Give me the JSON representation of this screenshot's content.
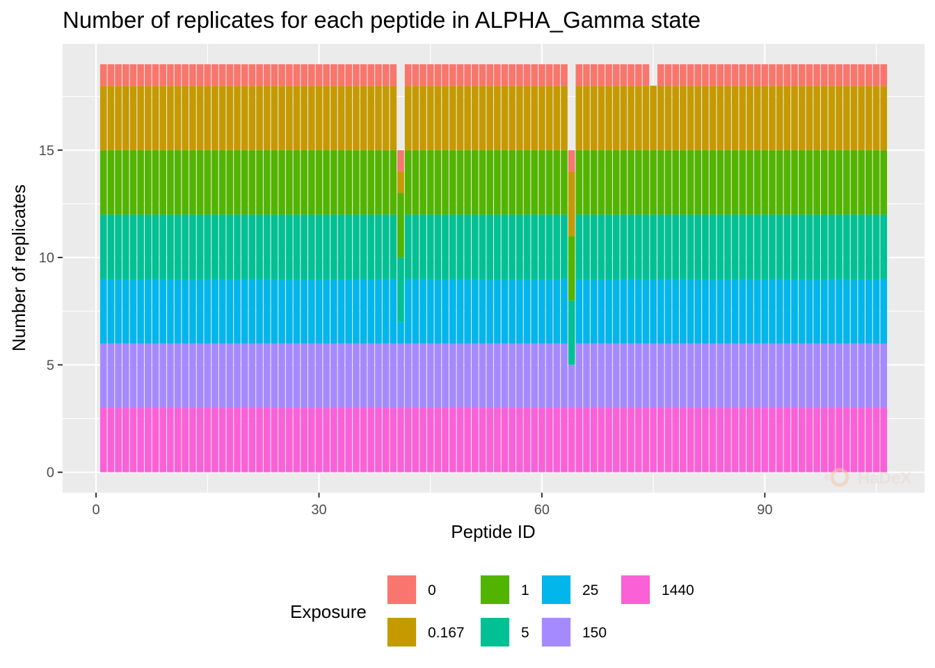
{
  "chart_data": {
    "type": "bar",
    "stacked": true,
    "title": "Number of replicates for each peptide in ALPHA_Gamma state",
    "xlabel": "Peptide ID",
    "ylabel": "Number of replicates",
    "xlim": [
      -4.5,
      111.5
    ],
    "ylim": [
      -0.95,
      19.95
    ],
    "x_ticks": [
      0,
      30,
      60,
      90
    ],
    "y_ticks": [
      0,
      5,
      10,
      15
    ],
    "grid": true,
    "panel_background": "#ebebeb",
    "legend": {
      "title": "Exposure",
      "position": "bottom",
      "entries": [
        "0",
        "0.167",
        "1",
        "5",
        "25",
        "150",
        "1440"
      ]
    },
    "series_colors": {
      "0": "#F8766D",
      "0.167": "#C49A00",
      "1": "#53B400",
      "5": "#00C094",
      "25": "#00B6EB",
      "150": "#A58AFF",
      "1440": "#FB61D7"
    },
    "peptide_ids": [
      1,
      106
    ],
    "default_replicates": {
      "0": 1,
      "0.167": 3,
      "1": 3,
      "5": 3,
      "25": 3,
      "150": 3,
      "1440": 3
    },
    "exceptions": {
      "41": {
        "0": 1,
        "0.167": 1,
        "1": 3,
        "5": 3,
        "25": 1,
        "150": 3,
        "1440": 3
      },
      "64": {
        "0": 1,
        "0.167": 3,
        "1": 3,
        "5": 3,
        "25": 0,
        "150": 2,
        "1440": 3
      },
      "75": {
        "0": 0,
        "0.167": 3,
        "1": 3,
        "5": 3,
        "25": 3,
        "150": 3,
        "1440": 3
      }
    },
    "watermark": "HaDeX"
  }
}
